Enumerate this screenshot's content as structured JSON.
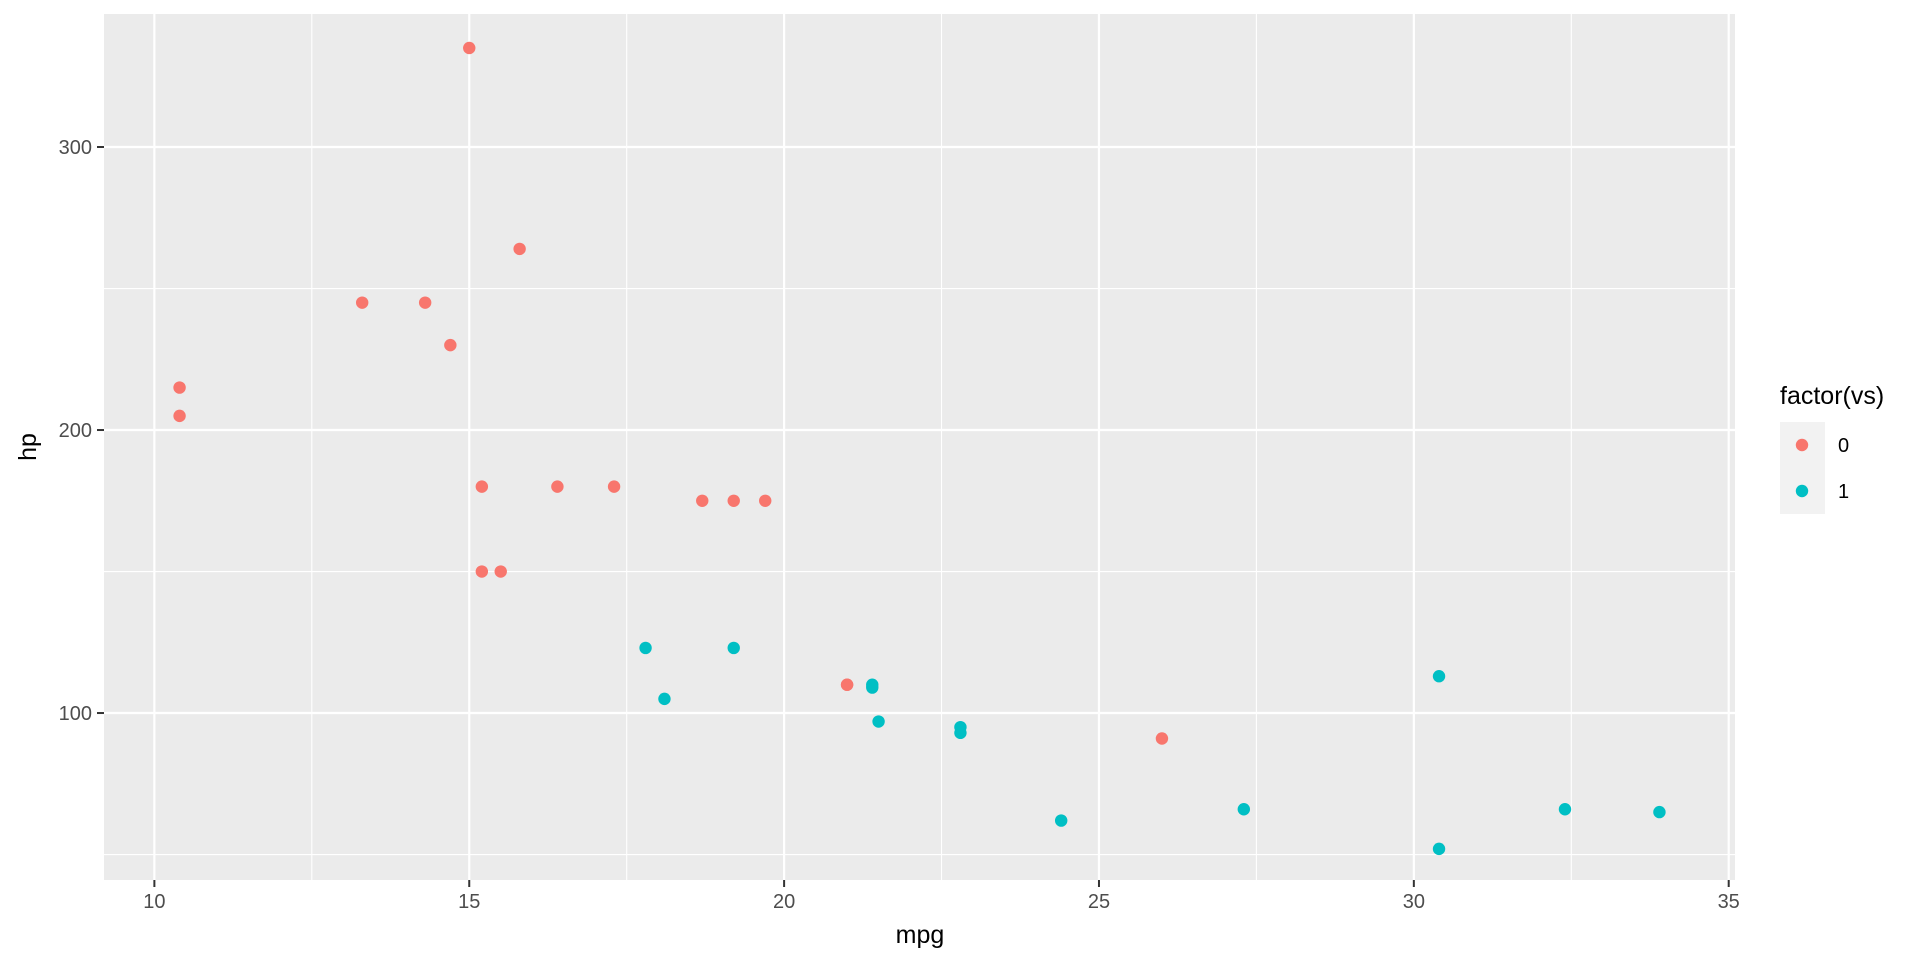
{
  "chart_data": {
    "type": "scatter",
    "xlabel": "mpg",
    "ylabel": "hp",
    "xlim": [
      9.2,
      35.1
    ],
    "ylim": [
      41,
      347
    ],
    "x_ticks": [
      10,
      15,
      20,
      25,
      30,
      35
    ],
    "x_tick_labels": [
      "10",
      "15",
      "20",
      "25",
      "30",
      "35"
    ],
    "x_minor_ticks": [
      12.5,
      17.5,
      22.5,
      27.5,
      32.5
    ],
    "y_ticks": [
      100,
      200,
      300
    ],
    "y_tick_labels": [
      "100",
      "200",
      "300"
    ],
    "y_minor_ticks": [
      50,
      150,
      250
    ],
    "grid": true,
    "legend": {
      "title": "factor(vs)",
      "position": "right",
      "entries": [
        {
          "label": "0",
          "color": "#F8766D"
        },
        {
          "label": "1",
          "color": "#00BFC4"
        }
      ]
    },
    "panel_background": "#EBEBEB",
    "series": [
      {
        "name": "0",
        "color": "#F8766D",
        "x": [
          21.0,
          21.0,
          18.7,
          14.3,
          16.4,
          17.3,
          15.2,
          10.4,
          10.4,
          14.7,
          15.5,
          15.2,
          13.3,
          19.2,
          26.0,
          15.8,
          19.7,
          15.0
        ],
        "y": [
          110,
          110,
          175,
          245,
          180,
          180,
          180,
          205,
          215,
          230,
          150,
          150,
          245,
          175,
          91,
          264,
          175,
          335
        ]
      },
      {
        "name": "1",
        "color": "#00BFC4",
        "x": [
          22.8,
          21.4,
          18.1,
          24.4,
          22.8,
          19.2,
          17.8,
          32.4,
          30.4,
          33.9,
          21.5,
          27.3,
          30.4,
          21.4
        ],
        "y": [
          93,
          110,
          105,
          62,
          95,
          123,
          123,
          66,
          52,
          65,
          97,
          66,
          113,
          109
        ]
      }
    ]
  }
}
